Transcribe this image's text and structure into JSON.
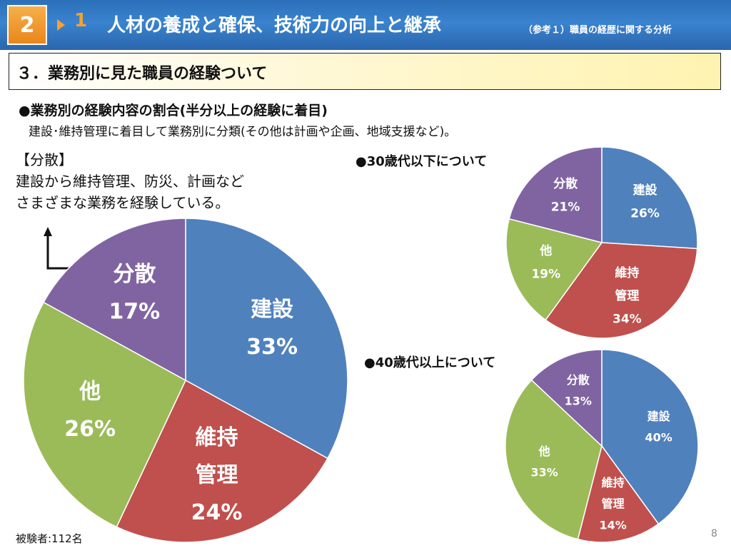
{
  "header": {
    "section_badge": "2",
    "number": "1",
    "title": "人材の養成と確保、技術力の向上と継承",
    "subtitle": "（参考１）職員の経歴に関する分析"
  },
  "section": {
    "title": "３．業務別に見た職員の経験ついて"
  },
  "intro": {
    "heading": "●業務別の経験内容の割合(半分以上の経験に着目)",
    "note": "建設･維持管理に着目して業務別に分類(その他は計画や企画、地域支援など)。"
  },
  "callout": {
    "line1": "【分散】",
    "line2": "建設から維持管理、防災、計画など",
    "line3": "さまざまな業務を経験している。"
  },
  "footnote": "被験者:112名",
  "page_number": "8",
  "colors": {
    "建設": "#4f81bd",
    "維持管理": "#c0504d",
    "他": "#9bbb59",
    "分散": "#8064a2"
  },
  "chart_data": [
    {
      "type": "pie",
      "title": "",
      "categories": [
        "建設",
        "維持管理",
        "他",
        "分散"
      ],
      "labels": [
        [
          "建設"
        ],
        [
          "維持",
          "管理"
        ],
        [
          "他"
        ],
        [
          "分散"
        ]
      ],
      "values": [
        33,
        24,
        26,
        17
      ],
      "unit": "%"
    },
    {
      "type": "pie",
      "title": "●30歳代以下について",
      "categories": [
        "建設",
        "維持管理",
        "他",
        "分散"
      ],
      "labels": [
        [
          "建設"
        ],
        [
          "維持",
          "管理"
        ],
        [
          "他"
        ],
        [
          "分散"
        ]
      ],
      "values": [
        26,
        34,
        19,
        21
      ],
      "unit": "%"
    },
    {
      "type": "pie",
      "title": "●40歳代以上について",
      "categories": [
        "建設",
        "維持管理",
        "他",
        "分散"
      ],
      "labels": [
        [
          "建設"
        ],
        [
          "維持",
          "管理"
        ],
        [
          "他"
        ],
        [
          "分散"
        ]
      ],
      "values": [
        40,
        14,
        33,
        13
      ],
      "unit": "%"
    }
  ]
}
